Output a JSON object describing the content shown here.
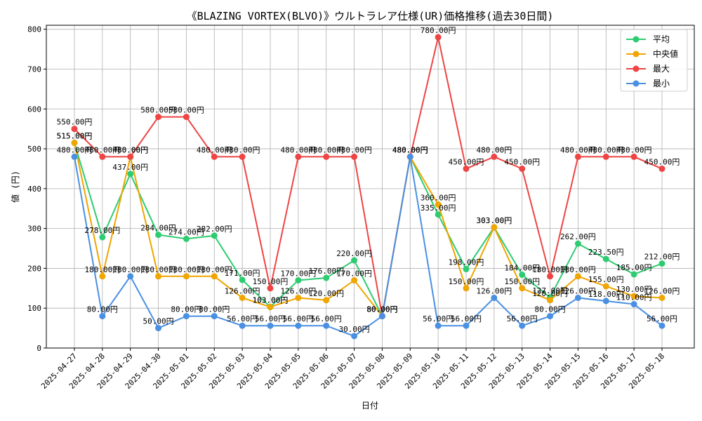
{
  "chart_data": {
    "type": "line",
    "title": "《BLAZING VORTEX(BLVO)》ウルトラレア仕様(UR)価格推移(過去30日間)",
    "xlabel": "日付",
    "ylabel": "値 (円)",
    "ylim": [
      0,
      810
    ],
    "yticks": [
      0,
      100,
      200,
      300,
      400,
      500,
      600,
      700,
      800
    ],
    "grid": true,
    "legend_position": "top-right",
    "value_suffix": "円",
    "categories": [
      "2025-04-27",
      "2025-04-28",
      "2025-04-29",
      "2025-04-30",
      "2025-05-01",
      "2025-05-02",
      "2025-05-03",
      "2025-05-04",
      "2025-05-05",
      "2025-05-06",
      "2025-05-07",
      "2025-05-08",
      "2025-05-09",
      "2025-05-10",
      "2025-05-11",
      "2025-05-12",
      "2025-05-13",
      "2025-05-14",
      "2025-05-15",
      "2025-05-16",
      "2025-05-17",
      "2025-05-18"
    ],
    "series": [
      {
        "name": "平均",
        "color": "#2ecc71",
        "values": [
          515,
          278,
          437,
          284,
          274,
          282,
          171,
          103,
          170,
          176,
          220,
          80,
          480,
          335,
          198,
          303,
          184,
          127,
          262,
          223.5,
          185,
          212
        ]
      },
      {
        "name": "中央値",
        "color": "#f0a500",
        "values": [
          515,
          180,
          480,
          180,
          180,
          180,
          126,
          103,
          126,
          120,
          170,
          80,
          480,
          360,
          150,
          303,
          150,
          120,
          180,
          155,
          130,
          126
        ]
      },
      {
        "name": "最大",
        "color": "#ef4444",
        "values": [
          550,
          480,
          480,
          580,
          580,
          480,
          480,
          150,
          480,
          480,
          480,
          80,
          480,
          780,
          450,
          480,
          450,
          180,
          480,
          480,
          480,
          450
        ]
      },
      {
        "name": "最小",
        "color": "#4a90e2",
        "values": [
          480,
          80,
          180,
          50,
          80,
          80,
          56,
          56,
          56,
          56,
          30,
          80,
          480,
          56,
          56,
          126,
          56,
          80,
          126,
          118,
          110,
          56
        ]
      }
    ]
  }
}
